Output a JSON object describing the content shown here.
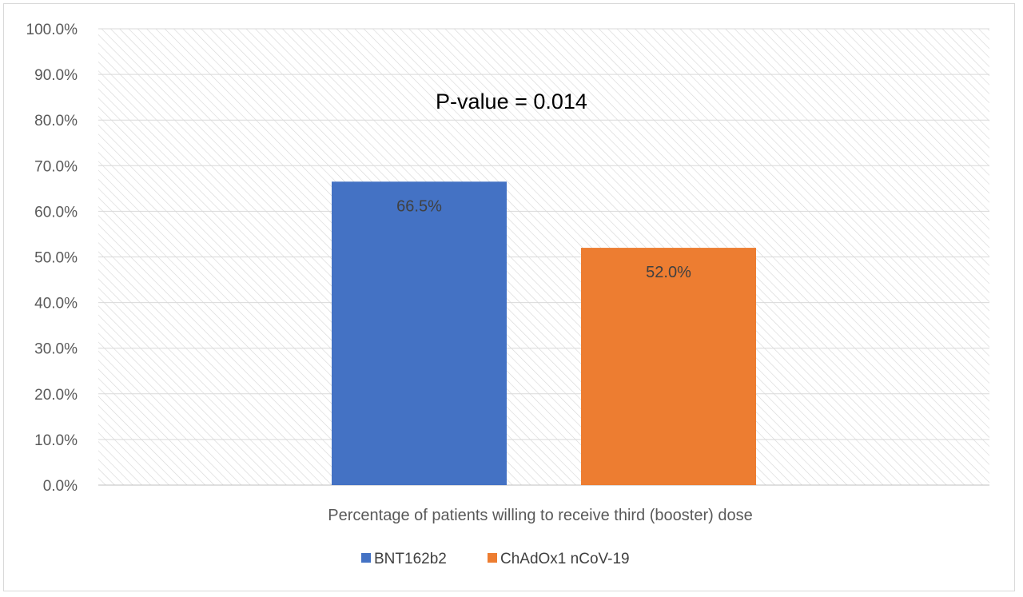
{
  "chart_data": {
    "type": "bar",
    "title": "",
    "xlabel": "Percentage of patients willing to receive third (booster) dose",
    "ylabel": "",
    "ylim": [
      0,
      100
    ],
    "yticks": [
      "0.0%",
      "10.0%",
      "20.0%",
      "30.0%",
      "40.0%",
      "50.0%",
      "60.0%",
      "70.0%",
      "80.0%",
      "90.0%",
      "100.0%"
    ],
    "categories": [
      "Percentage of patients willing to receive third (booster) dose"
    ],
    "series": [
      {
        "name": "BNT162b2",
        "values": [
          66.5
        ],
        "label": "66.5%",
        "color": "#4472c4"
      },
      {
        "name": "ChAdOx1 nCoV-19",
        "values": [
          52.0
        ],
        "label": "52.0%",
        "color": "#ed7d31"
      }
    ],
    "annotation": "P-value = 0.014",
    "grid": true,
    "legend": "bottom"
  }
}
